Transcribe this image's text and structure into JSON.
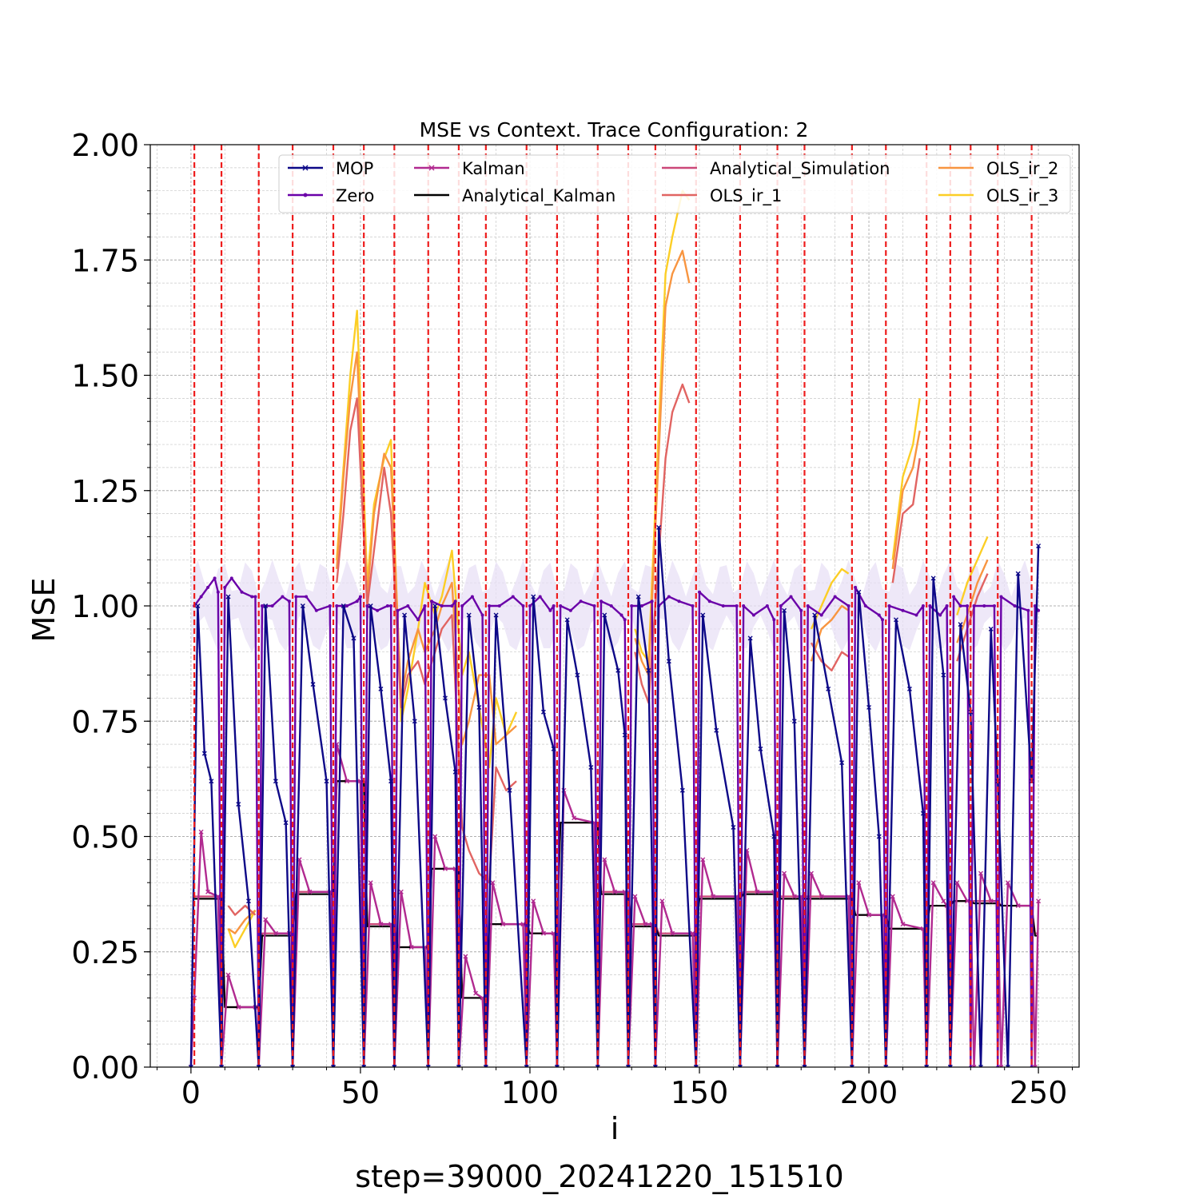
{
  "chart_data": {
    "type": "line",
    "title": "MSE vs Context. Trace Configuration: 2",
    "xlabel": "i",
    "ylabel": "MSE",
    "caption": "step=39000_20241220_151510",
    "xlim": [
      -12,
      262
    ],
    "ylim": [
      0,
      2.0
    ],
    "xticks": [
      0,
      50,
      100,
      150,
      200,
      250
    ],
    "xtick_labels": [
      "0",
      "50",
      "100",
      "150",
      "200",
      "250"
    ],
    "yticks": [
      0,
      0.25,
      0.5,
      0.75,
      1.0,
      1.25,
      1.5,
      1.75,
      2.0
    ],
    "ytick_labels": [
      "0.00",
      "0.25",
      "0.50",
      "0.75",
      "1.00",
      "1.25",
      "1.50",
      "1.75",
      "2.00"
    ],
    "grid": true,
    "legend_position": "top",
    "segment_boundaries": [
      1,
      9,
      20,
      30,
      42,
      51,
      60,
      70,
      79,
      87,
      99,
      108,
      120,
      129,
      137,
      149,
      162,
      173,
      181,
      195,
      205,
      217,
      224,
      230,
      238,
      248
    ],
    "series": [
      {
        "name": "MOP",
        "color": "#0d0887",
        "marker": "x",
        "x": [
          0,
          2,
          4,
          6,
          9,
          11,
          14,
          17,
          20,
          22,
          25,
          28,
          30,
          33,
          36,
          40,
          42,
          45,
          48,
          51,
          53,
          56,
          59,
          60,
          63,
          66,
          70,
          72,
          75,
          78,
          79,
          82,
          85,
          87,
          90,
          94,
          99,
          101,
          104,
          107,
          108,
          111,
          114,
          118,
          120,
          122,
          126,
          128,
          129,
          132,
          135,
          137,
          138,
          141,
          145,
          149,
          151,
          155,
          160,
          162,
          165,
          168,
          172,
          173,
          175,
          178,
          181,
          184,
          188,
          192,
          195,
          197,
          200,
          203,
          205,
          208,
          212,
          216,
          217,
          219,
          222,
          224,
          227,
          230,
          233,
          236,
          238,
          241,
          244,
          248,
          250
        ],
        "y": [
          0.0,
          1.0,
          0.68,
          0.62,
          0.0,
          1.02,
          0.57,
          0.36,
          0.0,
          1.0,
          0.62,
          0.53,
          0.0,
          1.0,
          0.83,
          0.62,
          0.0,
          1.0,
          0.93,
          0.0,
          1.0,
          0.82,
          0.62,
          0.0,
          0.98,
          0.75,
          0.0,
          1.0,
          0.8,
          0.64,
          0.0,
          0.98,
          0.78,
          0.0,
          0.98,
          0.6,
          0.0,
          1.02,
          0.77,
          0.69,
          0.0,
          0.97,
          0.85,
          0.65,
          0.0,
          0.98,
          0.86,
          0.72,
          0.0,
          1.02,
          0.86,
          0.0,
          1.17,
          0.88,
          0.6,
          0.0,
          0.98,
          0.73,
          0.52,
          0.0,
          0.93,
          0.69,
          0.5,
          0.0,
          0.99,
          0.75,
          0.0,
          0.98,
          0.82,
          0.66,
          0.0,
          1.03,
          0.78,
          0.5,
          0.0,
          0.97,
          0.82,
          0.55,
          0.0,
          1.06,
          0.85,
          0.0,
          0.96,
          0.77,
          0.0,
          0.95,
          0.62,
          0.0,
          1.07,
          0.62,
          1.13
        ]
      },
      {
        "name": "Zero",
        "color": "#6a00a8",
        "marker": "dot",
        "x": [
          1,
          3,
          5,
          7,
          8,
          9,
          10,
          12,
          15,
          18,
          19,
          20,
          21,
          24,
          27,
          29,
          30,
          31,
          34,
          37,
          41,
          42,
          43,
          46,
          49,
          50,
          51,
          52,
          55,
          58,
          59,
          60,
          61,
          64,
          67,
          69,
          70,
          71,
          74,
          77,
          78,
          79,
          80,
          83,
          86,
          87,
          88,
          91,
          95,
          98,
          99,
          100,
          103,
          106,
          107,
          108,
          109,
          112,
          115,
          119,
          120,
          121,
          124,
          127,
          128,
          129,
          130,
          133,
          136,
          137,
          138,
          141,
          144,
          148,
          149,
          150,
          153,
          157,
          161,
          162,
          163,
          166,
          170,
          172,
          173,
          174,
          177,
          180,
          181,
          182,
          186,
          190,
          194,
          195,
          196,
          199,
          203,
          204,
          205,
          206,
          210,
          214,
          216,
          217,
          218,
          221,
          223,
          224,
          225,
          227,
          229,
          230,
          231,
          234,
          237,
          238,
          239,
          243,
          247,
          248,
          249,
          250
        ],
        "y": [
          1.0,
          1.02,
          1.04,
          1.06,
          1.03,
          0.0,
          1.04,
          1.06,
          1.03,
          1.02,
          1.02,
          0.0,
          1.0,
          1.0,
          1.02,
          1.01,
          0.0,
          1.02,
          1.02,
          0.99,
          1.0,
          0.0,
          1.0,
          1.0,
          1.01,
          1.02,
          0.0,
          1.0,
          0.99,
          1.0,
          1.0,
          0.0,
          0.99,
          1.0,
          0.97,
          1.0,
          0.0,
          1.01,
          1.0,
          1.0,
          1.01,
          0.0,
          1.0,
          1.02,
          0.98,
          0.0,
          1.0,
          1.0,
          1.02,
          1.0,
          0.0,
          1.0,
          1.02,
          0.99,
          1.0,
          0.0,
          1.0,
          0.99,
          1.01,
          1.0,
          0.0,
          1.01,
          1.0,
          0.98,
          0.97,
          0.0,
          1.0,
          1.0,
          1.01,
          0.0,
          1.0,
          1.02,
          1.01,
          1.0,
          0.0,
          1.03,
          1.01,
          1.0,
          1.0,
          0.0,
          1.0,
          0.98,
          1.0,
          0.97,
          0.0,
          1.0,
          1.02,
          0.99,
          0.0,
          1.0,
          0.98,
          1.02,
          1.0,
          0.0,
          1.04,
          1.0,
          0.98,
          0.97,
          0.0,
          1.0,
          0.99,
          0.98,
          1.0,
          0.0,
          1.0,
          0.98,
          1.0,
          0.0,
          1.02,
          1.0,
          1.0,
          0.0,
          1.0,
          1.0,
          1.0,
          0.0,
          1.02,
          1.0,
          0.99,
          0.0,
          1.0,
          0.99
        ]
      },
      {
        "name": "Kalman",
        "color": "#b12a90",
        "marker": "x",
        "x": [
          0,
          1,
          3,
          5,
          8,
          9,
          11,
          14,
          19,
          20,
          22,
          25,
          29,
          30,
          32,
          35,
          41,
          42,
          43,
          46,
          50,
          51,
          53,
          56,
          59,
          60,
          62,
          65,
          69,
          70,
          72,
          75,
          78,
          79,
          81,
          84,
          86,
          87,
          89,
          92,
          98,
          99,
          101,
          104,
          107,
          108,
          110,
          113,
          119,
          120,
          122,
          125,
          128,
          129,
          131,
          134,
          136,
          137,
          139,
          142,
          148,
          149,
          151,
          154,
          161,
          162,
          164,
          167,
          172,
          173,
          175,
          178,
          180,
          181,
          183,
          186,
          194,
          195,
          197,
          200,
          204,
          205,
          207,
          210,
          216,
          217,
          219,
          222,
          223,
          224,
          226,
          229,
          230,
          231,
          233,
          236,
          238,
          239,
          241,
          244,
          248,
          249,
          250
        ],
        "y": [
          0.0,
          0.15,
          0.51,
          0.38,
          0.37,
          0.0,
          0.2,
          0.13,
          0.13,
          0.0,
          0.32,
          0.29,
          0.29,
          0.0,
          0.45,
          0.38,
          0.38,
          0.0,
          0.7,
          0.62,
          0.62,
          0.0,
          0.4,
          0.31,
          0.31,
          0.0,
          0.38,
          0.26,
          0.26,
          0.0,
          0.5,
          0.43,
          0.43,
          0.0,
          0.24,
          0.16,
          0.15,
          0.0,
          0.4,
          0.31,
          0.31,
          0.0,
          0.36,
          0.29,
          0.29,
          0.0,
          0.6,
          0.54,
          0.53,
          0.0,
          0.45,
          0.38,
          0.38,
          0.0,
          0.37,
          0.31,
          0.31,
          0.0,
          0.36,
          0.29,
          0.29,
          0.0,
          0.45,
          0.37,
          0.37,
          0.0,
          0.47,
          0.38,
          0.38,
          0.0,
          0.42,
          0.37,
          0.37,
          0.0,
          0.42,
          0.37,
          0.37,
          0.0,
          0.4,
          0.33,
          0.33,
          0.0,
          0.37,
          0.31,
          0.3,
          0.0,
          0.4,
          0.36,
          0.35,
          0.0,
          0.4,
          0.36,
          0.36,
          0.0,
          0.42,
          0.36,
          0.36,
          0.0,
          0.4,
          0.35,
          0.35,
          0.0,
          0.36
        ]
      },
      {
        "name": "Analytical_Kalman",
        "color": "#000000",
        "marker": "none",
        "x": [
          1,
          9,
          10,
          20,
          21,
          30,
          31,
          42,
          43,
          51,
          52,
          60,
          61,
          70,
          71,
          79,
          80,
          87,
          88,
          99,
          100,
          108,
          109,
          120,
          121,
          129,
          130,
          137,
          138,
          149,
          150,
          162,
          163,
          173,
          174,
          181,
          182,
          195,
          196,
          205,
          206,
          217,
          218,
          224,
          225,
          230,
          231,
          238,
          239,
          248,
          249,
          250
        ],
        "y": [
          0.365,
          0.365,
          0.13,
          0.13,
          0.285,
          0.285,
          0.375,
          0.375,
          0.62,
          0.62,
          0.305,
          0.305,
          0.26,
          0.26,
          0.43,
          0.43,
          0.15,
          0.15,
          0.31,
          0.31,
          0.29,
          0.29,
          0.53,
          0.53,
          0.375,
          0.375,
          0.305,
          0.305,
          0.285,
          0.285,
          0.365,
          0.365,
          0.375,
          0.375,
          0.365,
          0.365,
          0.365,
          0.365,
          0.33,
          0.33,
          0.3,
          0.3,
          0.35,
          0.35,
          0.36,
          0.36,
          0.355,
          0.355,
          0.35,
          0.35,
          0.285,
          0.285
        ]
      },
      {
        "name": "Analytical_Simulation",
        "color": "#cc4778",
        "marker": "none",
        "x": [
          1,
          9,
          10,
          20,
          21,
          30,
          31,
          42,
          43,
          51,
          52,
          60,
          61,
          70,
          71,
          79,
          80,
          87,
          88,
          99,
          100,
          108,
          109,
          120,
          121,
          129,
          130,
          137,
          138,
          149,
          150,
          162,
          163,
          173,
          174,
          181,
          182,
          195,
          196,
          205,
          206,
          217,
          218,
          224,
          225,
          230,
          231,
          238,
          239,
          248,
          249,
          250
        ],
        "y": [
          0.37,
          0.37,
          0.13,
          0.13,
          0.29,
          0.29,
          0.38,
          0.38,
          0.62,
          0.62,
          0.31,
          0.31,
          0.26,
          0.26,
          0.43,
          0.43,
          0.15,
          0.15,
          0.31,
          0.31,
          0.29,
          0.29,
          0.53,
          0.53,
          0.38,
          0.38,
          0.31,
          0.31,
          0.29,
          0.29,
          0.37,
          0.37,
          0.38,
          0.38,
          0.37,
          0.37,
          0.37,
          0.37,
          0.33,
          0.33,
          0.3,
          0.3,
          0.35,
          0.35,
          0.36,
          0.36,
          0.36,
          0.36,
          0.35,
          0.35,
          0.29,
          0.29
        ]
      },
      {
        "name": "OLS_ir_1",
        "color": "#e16462",
        "marker": "none",
        "x": [
          11,
          13,
          16,
          19,
          43,
          45,
          47,
          49,
          52,
          54,
          57,
          59,
          62,
          64,
          67,
          69,
          72,
          74,
          77,
          80,
          82,
          85,
          88,
          90,
          93,
          96,
          131,
          133,
          135,
          140,
          142,
          145,
          147,
          183,
          186,
          189,
          192,
          194,
          207,
          210,
          213,
          215,
          226,
          229,
          232,
          235
        ],
        "y": [
          0.35,
          0.33,
          0.35,
          0.33,
          1.05,
          1.2,
          1.38,
          1.45,
          1.0,
          1.12,
          1.3,
          1.2,
          0.78,
          0.85,
          0.88,
          0.83,
          0.9,
          0.95,
          0.98,
          0.52,
          0.47,
          0.42,
          0.4,
          0.65,
          0.6,
          0.62,
          0.9,
          0.83,
          0.79,
          1.32,
          1.42,
          1.48,
          1.44,
          0.92,
          0.88,
          0.86,
          0.9,
          0.89,
          1.05,
          1.2,
          1.22,
          1.32,
          0.88,
          0.95,
          1.02,
          1.07
        ]
      },
      {
        "name": "OLS_ir_2",
        "color": "#f89540",
        "marker": "none",
        "x": [
          11,
          13,
          16,
          19,
          43,
          45,
          47,
          49,
          52,
          54,
          57,
          59,
          62,
          64,
          67,
          69,
          72,
          74,
          77,
          80,
          82,
          85,
          88,
          90,
          93,
          96,
          131,
          133,
          135,
          140,
          142,
          145,
          147,
          183,
          186,
          189,
          192,
          194,
          207,
          210,
          213,
          215,
          226,
          229,
          232,
          235
        ],
        "y": [
          0.3,
          0.29,
          0.32,
          0.34,
          1.08,
          1.28,
          1.45,
          1.55,
          1.02,
          1.2,
          1.33,
          1.3,
          0.8,
          0.88,
          0.95,
          0.9,
          0.95,
          1.0,
          1.05,
          0.7,
          0.75,
          0.85,
          0.85,
          0.7,
          0.72,
          0.74,
          0.93,
          0.88,
          0.85,
          1.65,
          1.72,
          1.77,
          1.7,
          0.88,
          0.95,
          0.97,
          1.0,
          0.99,
          1.08,
          1.25,
          1.3,
          1.38,
          0.92,
          0.98,
          1.05,
          1.1
        ]
      },
      {
        "name": "OLS_ir_3",
        "color": "#fcce25",
        "marker": "none",
        "x": [
          11,
          13,
          16,
          19,
          43,
          45,
          47,
          49,
          52,
          54,
          57,
          59,
          62,
          64,
          67,
          69,
          72,
          74,
          77,
          80,
          82,
          85,
          88,
          90,
          93,
          96,
          131,
          133,
          135,
          140,
          142,
          145,
          147,
          183,
          186,
          189,
          192,
          194,
          207,
          210,
          213,
          215,
          226,
          229,
          232,
          235
        ],
        "y": [
          0.3,
          0.26,
          0.3,
          0.34,
          1.1,
          1.3,
          1.5,
          1.64,
          1.05,
          1.22,
          1.32,
          1.36,
          0.75,
          0.82,
          0.95,
          1.05,
          0.98,
          1.02,
          1.12,
          0.85,
          0.9,
          0.78,
          0.65,
          0.8,
          0.72,
          0.77,
          0.95,
          0.9,
          0.88,
          1.72,
          1.8,
          1.9,
          1.88,
          0.95,
          1.0,
          1.05,
          1.08,
          1.07,
          1.1,
          1.28,
          1.35,
          1.45,
          0.98,
          1.05,
          1.1,
          1.15
        ]
      }
    ],
    "legend_entries": [
      "MOP",
      "Zero",
      "Kalman",
      "Analytical_Kalman",
      "Analytical_Simulation",
      "OLS_ir_1",
      "OLS_ir_2",
      "OLS_ir_3"
    ],
    "boundary_color": "#ee1c1c",
    "band_color": "#e8e0f6"
  }
}
